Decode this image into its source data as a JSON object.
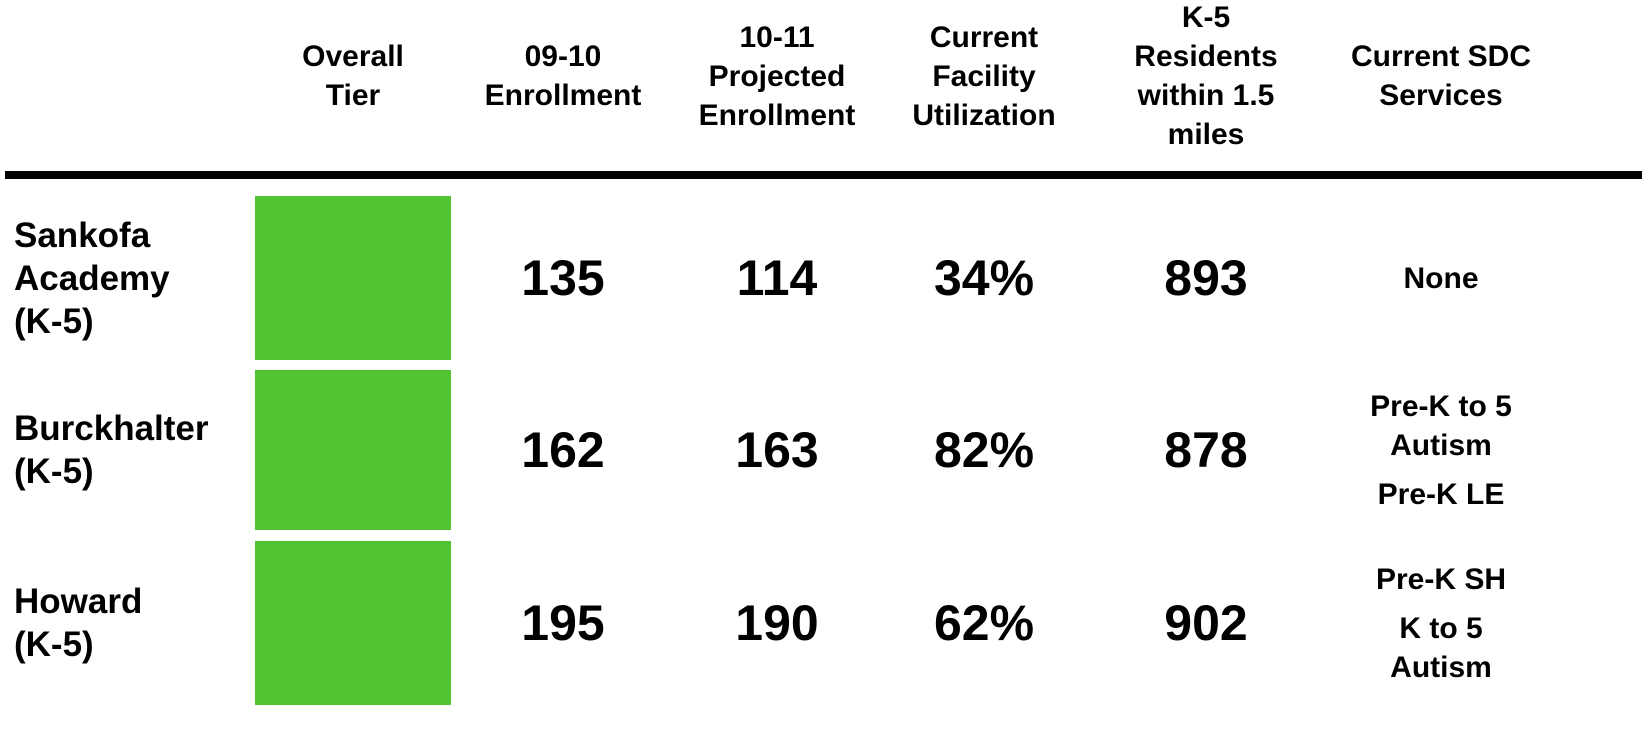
{
  "table": {
    "headers": [
      [
        "Overall",
        "Tier"
      ],
      [
        "09-10",
        "Enrollment"
      ],
      [
        "10-11",
        "Projected",
        "Enrollment"
      ],
      [
        "Current",
        "Facility",
        "Utilization"
      ],
      [
        "K-5",
        "Residents",
        "within 1.5",
        "miles"
      ],
      [
        "Current SDC",
        "Services"
      ]
    ],
    "tier_color": "#50c432",
    "rows": [
      {
        "name": [
          "Sankofa",
          "Academy",
          "(K-5)"
        ],
        "cells": [
          135,
          114,
          "34%",
          893
        ],
        "services": [
          [
            "None"
          ]
        ]
      },
      {
        "name": [
          "Burckhalter",
          "(K-5)"
        ],
        "cells": [
          162,
          163,
          "82%",
          878
        ],
        "services": [
          [
            "Pre-K to 5",
            "Autism"
          ],
          [
            "Pre-K LE"
          ]
        ]
      },
      {
        "name": [
          "Howard",
          "(K-5)"
        ],
        "cells": [
          195,
          190,
          "62%",
          902
        ],
        "services": [
          [
            "Pre-K SH"
          ],
          [
            "K to 5",
            "Autism"
          ]
        ]
      }
    ]
  }
}
